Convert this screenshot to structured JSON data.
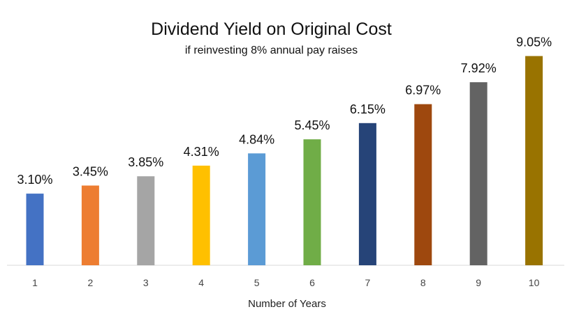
{
  "chart_data": {
    "type": "bar",
    "title": "Dividend Yield on Original Cost",
    "subtitle": "if reinvesting 8% annual pay raises",
    "xlabel": "Number of Years",
    "ylabel": "",
    "categories": [
      "1",
      "2",
      "3",
      "4",
      "5",
      "6",
      "7",
      "8",
      "9",
      "10"
    ],
    "values": [
      3.1,
      3.45,
      3.85,
      4.31,
      4.84,
      5.45,
      6.15,
      6.97,
      7.92,
      9.05
    ],
    "data_labels": [
      "3.10%",
      "3.45%",
      "3.85%",
      "4.31%",
      "4.84%",
      "5.45%",
      "6.15%",
      "6.97%",
      "7.92%",
      "9.05%"
    ],
    "colors": [
      "#4472C4",
      "#ED7D31",
      "#A5A5A5",
      "#FFC000",
      "#5B9BD5",
      "#70AD47",
      "#264478",
      "#9E480E",
      "#636363",
      "#997300"
    ],
    "ylim": [
      0,
      10
    ],
    "grid": false,
    "legend": "none"
  }
}
